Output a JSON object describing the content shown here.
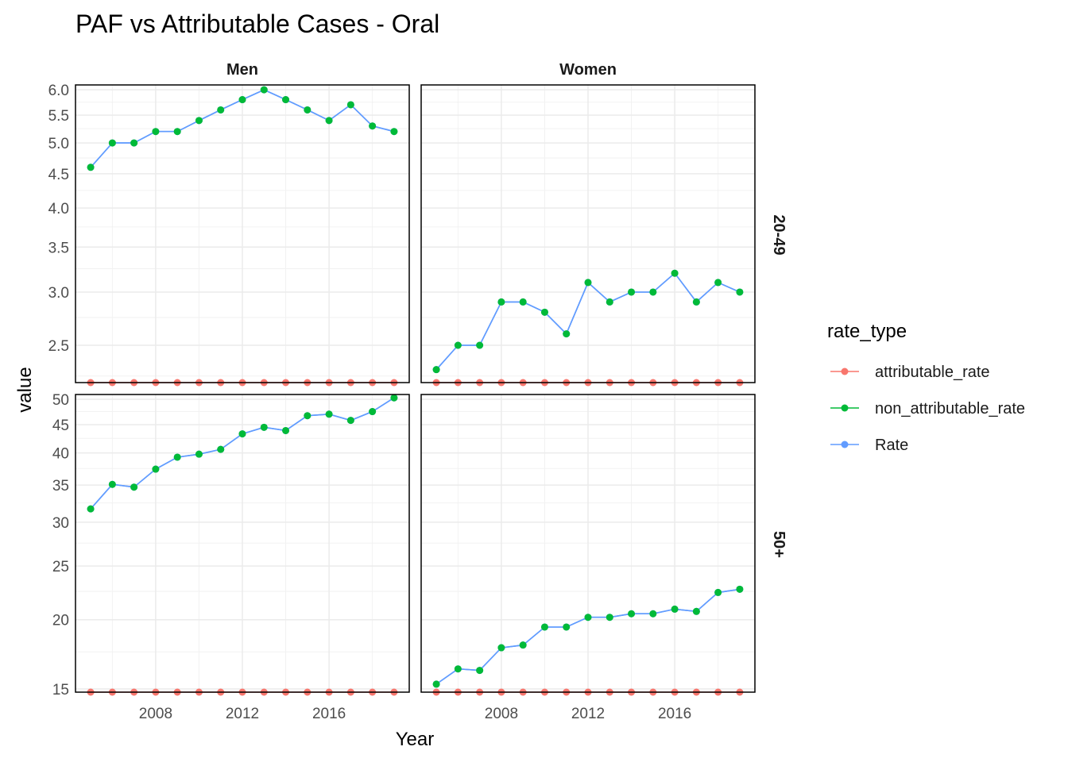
{
  "chart_data": {
    "type": "line",
    "title": "PAF vs Attributable Cases - Oral",
    "xlabel": "Year",
    "ylabel": "value",
    "x_ticks": [
      2008,
      2012,
      2016
    ],
    "xlim": [
      2004.3,
      2019.7
    ],
    "facet_cols": [
      "Men",
      "Women"
    ],
    "facet_rows": [
      "20-49",
      "50+"
    ],
    "y_scale": "log",
    "legend": {
      "title": "rate_type",
      "position": "right",
      "entries": [
        {
          "name": "attributable_rate",
          "color": "#F8766D"
        },
        {
          "name": "non_attributable_rate",
          "color": "#00BA38"
        },
        {
          "name": "Rate",
          "color": "#619CFF"
        }
      ]
    },
    "rows": [
      {
        "label": "20-49",
        "ylim": [
          2.2,
          6.1
        ],
        "y_ticks": [
          {
            "value": 2.5,
            "label": "2.5"
          },
          {
            "value": 3.0,
            "label": "3.0"
          },
          {
            "value": 3.5,
            "label": "3.5"
          },
          {
            "value": 4.0,
            "label": "4.0"
          },
          {
            "value": 4.5,
            "label": "4.5"
          },
          {
            "value": 5.0,
            "label": "5.0"
          },
          {
            "value": 5.5,
            "label": "5.5"
          },
          {
            "value": 6.0,
            "label": "6.0"
          }
        ]
      },
      {
        "label": "50+",
        "ylim": [
          14.8,
          51
        ],
        "y_ticks": [
          {
            "value": 15,
            "label": "15"
          },
          {
            "value": 20,
            "label": "20"
          },
          {
            "value": 25,
            "label": "25"
          },
          {
            "value": 30,
            "label": "30"
          },
          {
            "value": 35,
            "label": "35"
          },
          {
            "value": 40,
            "label": "40"
          },
          {
            "value": 45,
            "label": "45"
          },
          {
            "value": 50,
            "label": "50"
          }
        ]
      }
    ],
    "panels": [
      {
        "col": "Men",
        "row": "20-49",
        "x": [
          2005,
          2006,
          2007,
          2008,
          2009,
          2010,
          2011,
          2012,
          2013,
          2014,
          2015,
          2016,
          2017,
          2018,
          2019
        ],
        "series": [
          {
            "name": "Rate",
            "values": [
              4.6,
              5.0,
              5.0,
              5.2,
              5.2,
              5.4,
              5.6,
              5.8,
              6.0,
              5.8,
              5.6,
              5.4,
              5.7,
              5.3,
              5.2
            ]
          },
          {
            "name": "non_attributable_rate",
            "values": [
              4.6,
              5.0,
              5.0,
              5.2,
              5.2,
              5.4,
              5.6,
              5.8,
              6.0,
              5.8,
              5.6,
              5.4,
              5.7,
              5.3,
              5.2
            ]
          },
          {
            "name": "attributable_rate",
            "values": [
              0,
              0,
              0,
              0,
              0,
              0,
              0,
              0,
              0,
              0,
              0,
              0,
              0,
              0,
              0
            ]
          }
        ]
      },
      {
        "col": "Women",
        "row": "20-49",
        "x": [
          2005,
          2006,
          2007,
          2008,
          2009,
          2010,
          2011,
          2012,
          2013,
          2014,
          2015,
          2016,
          2017,
          2018,
          2019
        ],
        "series": [
          {
            "name": "Rate",
            "values": [
              2.3,
              2.5,
              2.5,
              2.9,
              2.9,
              2.8,
              2.6,
              3.1,
              2.9,
              3.0,
              3.0,
              3.2,
              2.9,
              3.1,
              3.0
            ]
          },
          {
            "name": "non_attributable_rate",
            "values": [
              2.3,
              2.5,
              2.5,
              2.9,
              2.9,
              2.8,
              2.6,
              3.1,
              2.9,
              3.0,
              3.0,
              3.2,
              2.9,
              3.1,
              3.0
            ]
          },
          {
            "name": "attributable_rate",
            "values": [
              0,
              0,
              0,
              0,
              0,
              0,
              0,
              0,
              0,
              0,
              0,
              0,
              0,
              0,
              0
            ]
          }
        ]
      },
      {
        "col": "Men",
        "row": "50+",
        "x": [
          2005,
          2006,
          2007,
          2008,
          2009,
          2010,
          2011,
          2012,
          2013,
          2014,
          2015,
          2016,
          2017,
          2018,
          2019
        ],
        "series": [
          {
            "name": "Rate",
            "values": [
              31.7,
              35.1,
              34.7,
              37.4,
              39.3,
              39.8,
              40.6,
              43.3,
              44.5,
              43.9,
              46.7,
              47.0,
              45.8,
              47.5,
              50.3
            ]
          },
          {
            "name": "non_attributable_rate",
            "values": [
              31.7,
              35.1,
              34.7,
              37.4,
              39.3,
              39.8,
              40.6,
              43.3,
              44.5,
              43.9,
              46.7,
              47.0,
              45.8,
              47.5,
              50.3
            ]
          },
          {
            "name": "attributable_rate",
            "values": [
              0,
              0,
              0,
              0,
              0,
              0,
              0,
              0,
              0,
              0,
              0,
              0,
              0,
              0,
              0
            ]
          }
        ]
      },
      {
        "col": "Women",
        "row": "50+",
        "x": [
          2005,
          2006,
          2007,
          2008,
          2009,
          2010,
          2011,
          2012,
          2013,
          2014,
          2015,
          2016,
          2017,
          2018,
          2019
        ],
        "series": [
          {
            "name": "Rate",
            "values": [
              15.3,
              16.3,
              16.2,
              17.8,
              18.0,
              19.4,
              19.4,
              20.2,
              20.2,
              20.5,
              20.5,
              20.9,
              20.7,
              22.4,
              22.7
            ]
          },
          {
            "name": "non_attributable_rate",
            "values": [
              15.3,
              16.3,
              16.2,
              17.8,
              18.0,
              19.4,
              19.4,
              20.2,
              20.2,
              20.5,
              20.5,
              20.9,
              20.7,
              22.4,
              22.7
            ]
          },
          {
            "name": "attributable_rate",
            "values": [
              0,
              0,
              0,
              0,
              0,
              0,
              0,
              0,
              0,
              0,
              0,
              0,
              0,
              0,
              0
            ]
          }
        ]
      }
    ]
  }
}
